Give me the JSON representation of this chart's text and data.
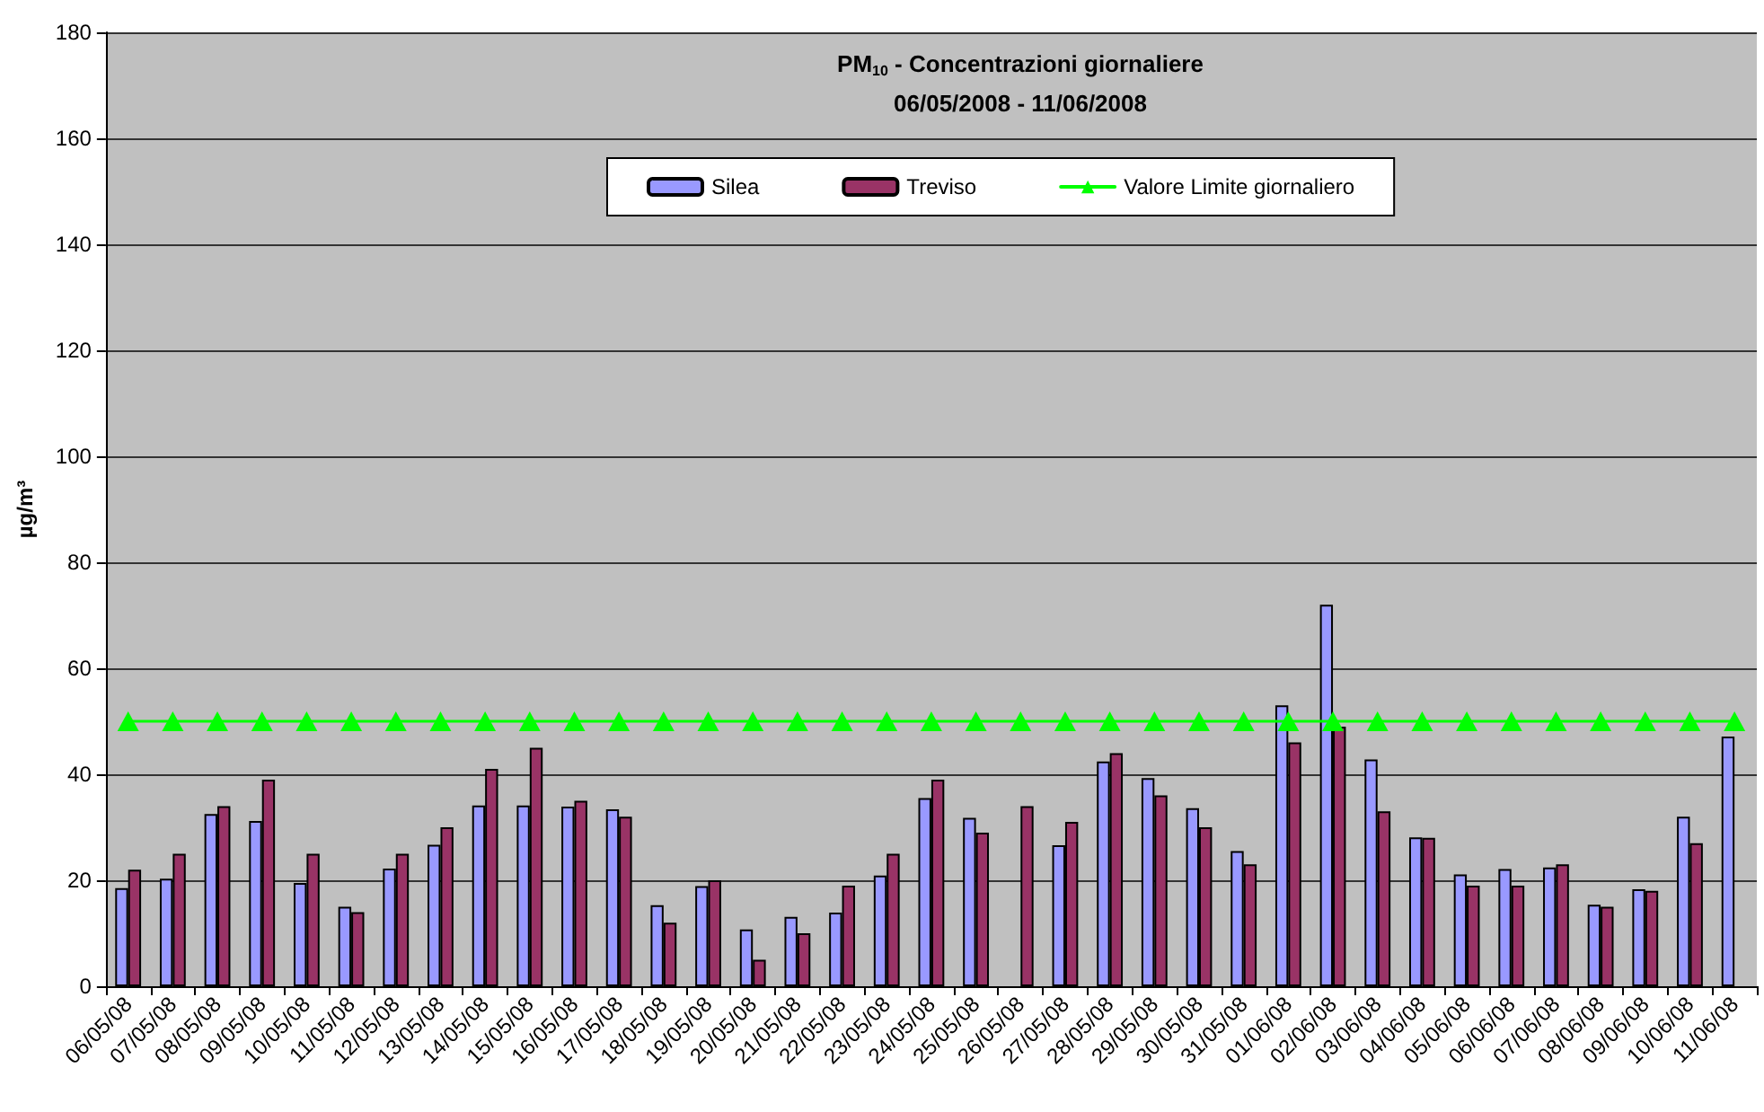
{
  "chart_data": {
    "type": "bar",
    "title": "PM$_{10}$ - Concentrazioni giornaliere",
    "subtitle": "06/05/2008 - 11/06/2008",
    "ylabel": "µg/m³",
    "categories": [
      "06/05/08",
      "07/05/08",
      "08/05/08",
      "09/05/08",
      "10/05/08",
      "11/05/08",
      "12/05/08",
      "13/05/08",
      "14/05/08",
      "15/05/08",
      "16/05/08",
      "17/05/08",
      "18/05/08",
      "19/05/08",
      "20/05/08",
      "21/05/08",
      "22/05/08",
      "23/05/08",
      "24/05/08",
      "25/05/08",
      "26/05/08",
      "27/05/08",
      "28/05/08",
      "29/05/08",
      "30/05/08",
      "31/05/08",
      "01/06/08",
      "02/06/08",
      "03/06/08",
      "04/06/08",
      "05/06/08",
      "06/06/08",
      "07/06/08",
      "08/06/08",
      "09/06/08",
      "10/06/08",
      "11/06/08"
    ],
    "series": [
      {
        "name": "Silea",
        "color": "#9999ff",
        "values": [
          18.5,
          20.3,
          32.5,
          31.2,
          19.5,
          15.0,
          22.2,
          26.7,
          34.1,
          34.1,
          33.9,
          33.4,
          15.3,
          18.9,
          10.7,
          13.1,
          13.9,
          20.9,
          35.5,
          31.8,
          null,
          26.6,
          42.4,
          39.3,
          33.6,
          25.5,
          53.0,
          72.0,
          42.8,
          28.1,
          21.1,
          22.1,
          22.4,
          15.4,
          18.3,
          32.0,
          47.1
        ]
      },
      {
        "name": "Treviso",
        "color": "#993366",
        "values": [
          22,
          25,
          34,
          39,
          25,
          14,
          25,
          30,
          41,
          45,
          35,
          32,
          12,
          20,
          5,
          10,
          19,
          25,
          39,
          29,
          34,
          31,
          44,
          36,
          30,
          23,
          46,
          49,
          33,
          28,
          19,
          19,
          23,
          15,
          18,
          27,
          null
        ]
      },
      {
        "name": "Valore Limite giornaliero",
        "type": "line",
        "color": "#00ff00",
        "values": [
          50,
          50,
          50,
          50,
          50,
          50,
          50,
          50,
          50,
          50,
          50,
          50,
          50,
          50,
          50,
          50,
          50,
          50,
          50,
          50,
          50,
          50,
          50,
          50,
          50,
          50,
          50,
          50,
          50,
          50,
          50,
          50,
          50,
          50,
          50,
          50,
          50
        ]
      }
    ],
    "ylim": [
      0,
      180
    ],
    "yticks": [
      0,
      20,
      40,
      60,
      80,
      100,
      120,
      140,
      160,
      180
    ],
    "grid": "y",
    "legend": "top",
    "marker": "triangle",
    "line_style": "solid"
  }
}
